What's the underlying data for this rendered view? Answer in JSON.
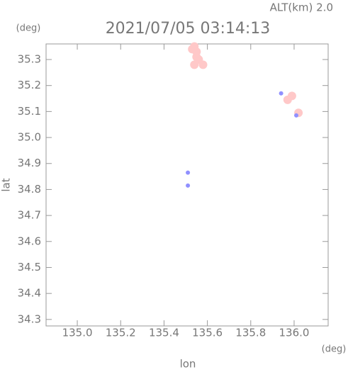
{
  "chart_data": {
    "type": "scatter",
    "title": "2021/07/05 03:14:13",
    "annotation": "ALT(km) 2.0",
    "y_unit": "(deg)",
    "x_unit": "(deg)",
    "x_label": "lon",
    "y_label": "lat",
    "xlim": [
      134.856,
      136.157
    ],
    "ylim": [
      34.275,
      35.36
    ],
    "xticks": [
      {
        "value": 135.0,
        "label": "135.0"
      },
      {
        "value": 135.2,
        "label": "135.2"
      },
      {
        "value": 135.4,
        "label": "135.4"
      },
      {
        "value": 135.6,
        "label": "135.6"
      },
      {
        "value": 135.8,
        "label": "135.8"
      },
      {
        "value": 136.0,
        "label": "136.0"
      }
    ],
    "yticks": [
      {
        "value": 34.3,
        "label": "34.3"
      },
      {
        "value": 34.4,
        "label": "34.4"
      },
      {
        "value": 34.5,
        "label": "34.5"
      },
      {
        "value": 34.6,
        "label": "34.6"
      },
      {
        "value": 34.7,
        "label": "34.7"
      },
      {
        "value": 34.8,
        "label": "34.8"
      },
      {
        "value": 34.9,
        "label": "34.9"
      },
      {
        "value": 35.0,
        "label": "35.0"
      },
      {
        "value": 35.1,
        "label": "35.1"
      },
      {
        "value": 35.2,
        "label": "35.2"
      },
      {
        "value": 35.3,
        "label": "35.3"
      }
    ],
    "series": [
      {
        "color": "#ffc8c8",
        "x": [
          135.53,
          135.55,
          135.56,
          135.54,
          135.58,
          135.55,
          135.54,
          135.99,
          135.97,
          136.02
        ],
        "y": [
          35.34,
          35.33,
          35.3,
          35.28,
          35.28,
          35.31,
          35.35,
          35.16,
          35.145,
          35.095
        ]
      },
      {
        "color": "#9090ff",
        "x": [
          135.94,
          136.01,
          135.51,
          135.51
        ],
        "y": [
          35.17,
          35.085,
          34.865,
          34.815
        ]
      }
    ]
  }
}
